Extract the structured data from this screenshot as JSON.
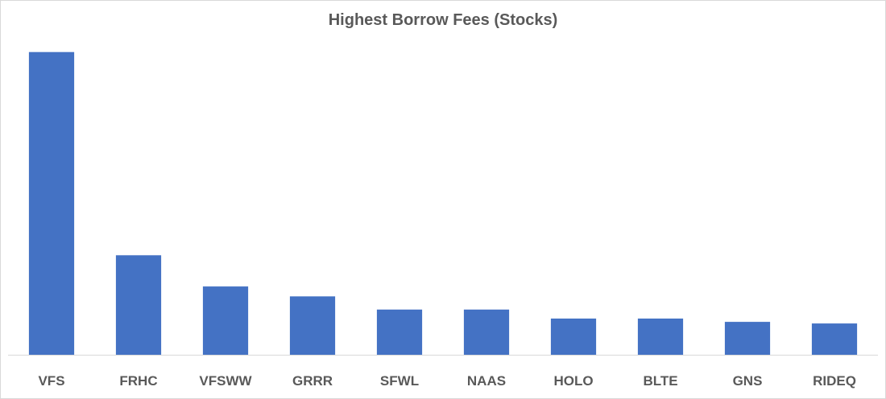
{
  "chart_data": {
    "type": "bar",
    "title": "Highest Borrow Fees (Stocks)",
    "xlabel": "",
    "ylabel": "",
    "categories": [
      "VFS",
      "FRHC",
      "VFSWW",
      "GRRR",
      "SFWL",
      "NAAS",
      "HOLO",
      "BLTE",
      "GNS",
      "RIDEQ"
    ],
    "values": [
      368,
      121,
      83,
      71,
      55,
      55,
      44,
      44,
      40,
      38
    ],
    "ylim": [
      0,
      400
    ],
    "bar_color": "#4472c4",
    "axis_color": "#d9d9d9",
    "grid": false,
    "legend": false
  }
}
